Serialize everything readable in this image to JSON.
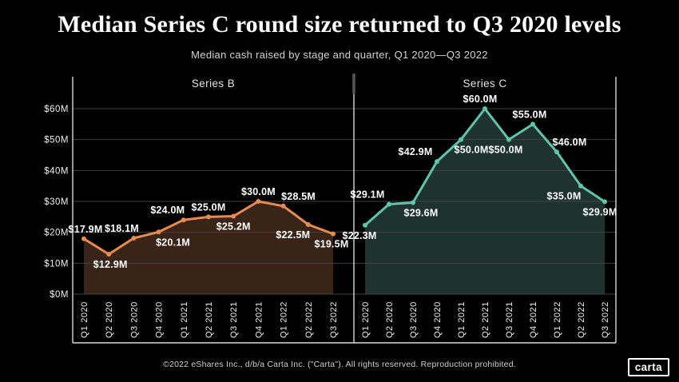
{
  "header": {
    "title": "Median Series C round size returned to Q3 2020 levels",
    "subtitle": "Median cash raised by stage and quarter, Q1 2020—Q3 2022"
  },
  "chart_data": {
    "type": "area",
    "categories": [
      "Q1 2020",
      "Q2 2020",
      "Q3 2020",
      "Q4 2020",
      "Q1 2021",
      "Q2 2021",
      "Q3 2021",
      "Q4 2021",
      "Q1 2022",
      "Q2 2022",
      "Q3 2022"
    ],
    "ylim": [
      0,
      60
    ],
    "y_tick_step": 10,
    "y_tick_labels": [
      "$0M",
      "$10M",
      "$20M",
      "$30M",
      "$40M",
      "$50M",
      "$60M"
    ],
    "grid": true,
    "legend_position": "panel-titles",
    "colors": {
      "background": "#000000",
      "gridline": "#464646",
      "axis_frame": "#d9d9d9",
      "tick_text": "#efefef",
      "scrollbar_thumb": "#555555"
    },
    "series": [
      {
        "name": "Series B",
        "values": [
          17.9,
          12.9,
          18.1,
          20.1,
          24.0,
          25.0,
          25.2,
          30.0,
          28.5,
          22.5,
          19.5
        ],
        "point_labels": [
          "$17.9M",
          "$12.9M",
          "$18.1M",
          "$20.1M",
          "$24.0M",
          "$25.0M",
          "$25.2M",
          "$30.0M",
          "$28.5M",
          "$22.5M",
          "$19.5M"
        ],
        "label_side": [
          "above",
          "below",
          "above",
          "below",
          "above",
          "above",
          "below",
          "above",
          "above",
          "below",
          "below"
        ],
        "label_dx": [
          2,
          2,
          -15,
          18,
          -20,
          0,
          0,
          0,
          19,
          -19,
          -2
        ],
        "line_color": "#e78b4e",
        "fill_color": "#3a2417"
      },
      {
        "name": "Series C",
        "values": [
          22.3,
          29.1,
          29.6,
          42.9,
          50.0,
          60.0,
          50.0,
          55.0,
          46.0,
          35.0,
          29.9
        ],
        "point_labels": [
          "$22.3M",
          "$29.1M",
          "$29.6M",
          "$42.9M",
          "$50.0M",
          "$60.0M",
          "$50.0M",
          "$55.0M",
          "$46.0M",
          "$35.0M",
          "$29.9M"
        ],
        "label_side": [
          "below",
          "above",
          "below",
          "above",
          "below",
          "above",
          "below",
          "above",
          "above",
          "below",
          "below"
        ],
        "label_dx": [
          -7,
          -27,
          10,
          -27,
          13,
          -6,
          -4,
          -4,
          16,
          -21,
          -6
        ],
        "line_color": "#5fc4ac",
        "fill_color": "#1e332e"
      }
    ]
  },
  "footer": {
    "copyright": "©2022 eShares Inc., d/b/a Carta Inc. (\"Carta\"). All rights reserved. Reproduction prohibited.",
    "logo_text": "carta"
  }
}
